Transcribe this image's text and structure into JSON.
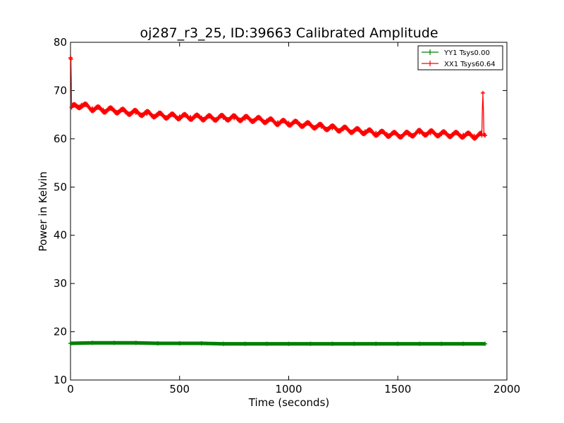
{
  "chart_data": {
    "type": "line",
    "title": "oj287_r3_25, ID:39663 Calibrated Amplitude",
    "xlabel": "Time (seconds)",
    "ylabel": "Power in Kelvin",
    "xlim": [
      0,
      2000
    ],
    "ylim": [
      10,
      80
    ],
    "xticks": [
      "0",
      "500",
      "1000",
      "1500",
      "2000"
    ],
    "yticks": [
      "10",
      "20",
      "30",
      "40",
      "50",
      "60",
      "70",
      "80"
    ],
    "grid": false,
    "legend_position": "top-right",
    "series": [
      {
        "name": "YY1 Tsys0.00",
        "color": "#008000",
        "x": [
          0,
          100,
          200,
          300,
          400,
          500,
          600,
          700,
          800,
          900,
          1000,
          1100,
          1200,
          1300,
          1400,
          1500,
          1600,
          1700,
          1800,
          1900
        ],
        "y": [
          17.6,
          17.7,
          17.7,
          17.7,
          17.6,
          17.6,
          17.6,
          17.5,
          17.5,
          17.5,
          17.5,
          17.5,
          17.5,
          17.5,
          17.5,
          17.5,
          17.5,
          17.5,
          17.5,
          17.5
        ]
      },
      {
        "name": "XX1 Tsys60.64",
        "color": "#ff0000",
        "x": [
          0,
          2,
          5,
          50,
          100,
          150,
          200,
          250,
          300,
          350,
          400,
          450,
          500,
          550,
          600,
          650,
          700,
          750,
          800,
          850,
          900,
          950,
          1000,
          1050,
          1100,
          1150,
          1200,
          1250,
          1300,
          1350,
          1400,
          1450,
          1500,
          1550,
          1600,
          1650,
          1700,
          1750,
          1800,
          1850,
          1885,
          1890,
          1895,
          1900
        ],
        "y": [
          76.8,
          76.5,
          66.5,
          67.0,
          66.3,
          66.0,
          65.9,
          65.6,
          65.4,
          65.2,
          64.9,
          64.7,
          64.6,
          64.5,
          64.4,
          64.3,
          64.4,
          64.3,
          64.2,
          64.0,
          63.8,
          63.4,
          63.3,
          63.1,
          62.8,
          62.5,
          62.2,
          62.0,
          61.7,
          61.5,
          61.2,
          61.0,
          60.8,
          60.9,
          61.3,
          61.2,
          61.0,
          60.9,
          60.8,
          60.6,
          60.7,
          69.5,
          61.0,
          60.7
        ]
      }
    ]
  }
}
